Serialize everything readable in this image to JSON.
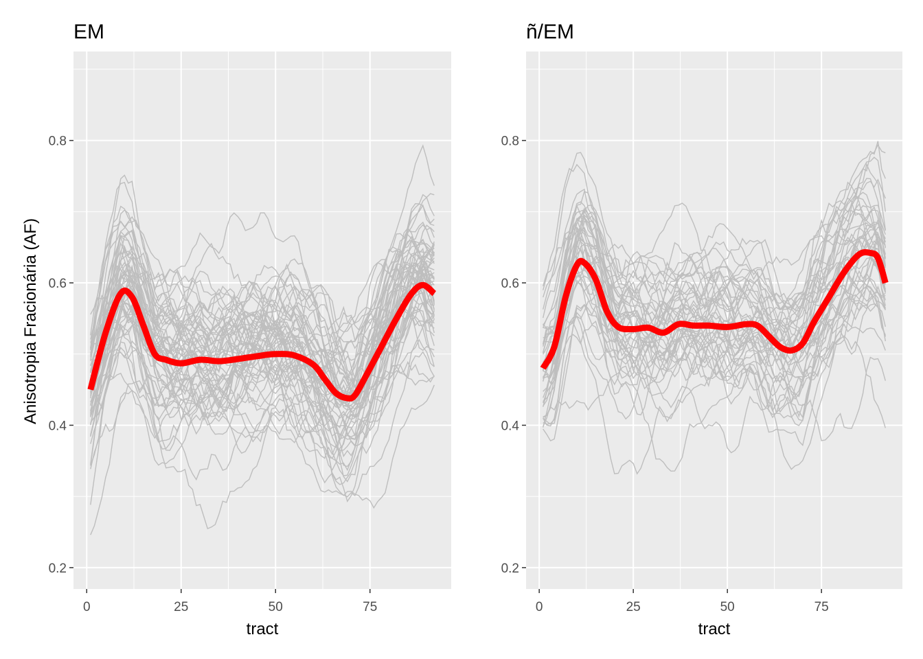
{
  "ylabel": "Anisotropia Fracionária (AF)",
  "colors": {
    "panel_bg": "#ebebeb",
    "grid": "#ffffff",
    "individual": "#bebebe",
    "mean": "#ff0000",
    "tick_text": "#4d4d4d"
  },
  "chart_data": [
    {
      "type": "line",
      "title": "EM",
      "xlabel": "tract",
      "ylabel": "Anisotropia Fracionária (AF)",
      "xlim": [
        -3.5,
        96.5
      ],
      "ylim": [
        0.17,
        0.925
      ],
      "xticks": [
        0,
        25,
        50,
        75
      ],
      "yticks": [
        0.2,
        0.4,
        0.6,
        0.8
      ],
      "xtick_labels": [
        "0",
        "25",
        "50",
        "75"
      ],
      "ytick_labels": [
        "0.2",
        "0.4",
        "0.6",
        "0.8"
      ],
      "grid": true,
      "x_max": 92,
      "individual_count": 60,
      "individual_seed": 11,
      "mean_series": {
        "x": [
          1,
          5,
          9,
          12,
          15,
          18,
          21,
          25,
          30,
          35,
          40,
          45,
          50,
          55,
          60,
          63,
          66,
          69,
          71,
          74,
          78,
          82,
          86,
          89,
          92
        ],
        "y": [
          0.45,
          0.53,
          0.585,
          0.58,
          0.54,
          0.5,
          0.492,
          0.487,
          0.492,
          0.49,
          0.493,
          0.497,
          0.5,
          0.498,
          0.485,
          0.465,
          0.445,
          0.438,
          0.442,
          0.47,
          0.51,
          0.55,
          0.585,
          0.597,
          0.585
        ]
      }
    },
    {
      "type": "line",
      "title": "ñ/EM",
      "xlabel": "tract",
      "ylabel": "",
      "xlim": [
        -3.5,
        96.5
      ],
      "ylim": [
        0.17,
        0.925
      ],
      "xticks": [
        0,
        25,
        50,
        75
      ],
      "yticks": [
        0.2,
        0.4,
        0.6,
        0.8
      ],
      "xtick_labels": [
        "0",
        "25",
        "50",
        "75"
      ],
      "ytick_labels": [
        "0.2",
        "0.4",
        "0.6",
        "0.8"
      ],
      "grid": true,
      "x_max": 92,
      "individual_count": 45,
      "individual_seed": 29,
      "mean_series": {
        "x": [
          1,
          4,
          7,
          10,
          12,
          15,
          18,
          21,
          25,
          29,
          33,
          37,
          41,
          45,
          50,
          55,
          58,
          61,
          64,
          67,
          70,
          73,
          77,
          81,
          85,
          88,
          90,
          92
        ],
        "y": [
          0.48,
          0.51,
          0.58,
          0.625,
          0.628,
          0.605,
          0.56,
          0.538,
          0.535,
          0.537,
          0.53,
          0.542,
          0.54,
          0.54,
          0.538,
          0.542,
          0.54,
          0.525,
          0.51,
          0.505,
          0.515,
          0.545,
          0.58,
          0.615,
          0.64,
          0.642,
          0.635,
          0.6
        ]
      }
    }
  ]
}
